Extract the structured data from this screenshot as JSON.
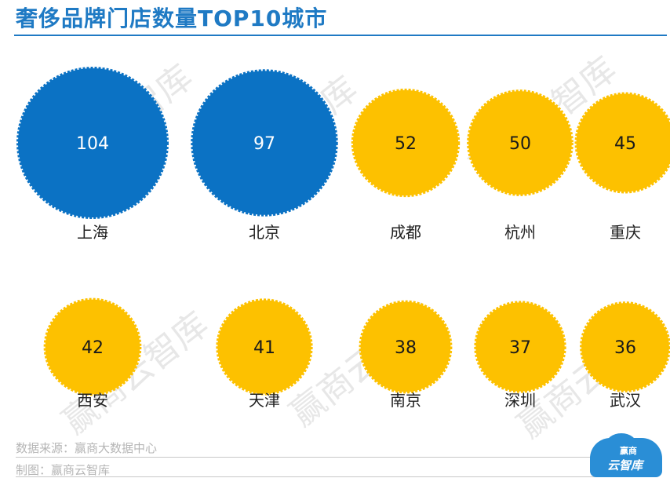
{
  "title": "奢侈品牌门店数量TOP10城市",
  "watermark": "赢商云智库",
  "footer": {
    "source": "数据来源：赢商大数据中心",
    "maker": "制图：赢商云智库"
  },
  "logo": {
    "line1": "赢商",
    "line2": "云智库"
  },
  "colors": {
    "top_series": "#0b72c4",
    "other_series": "#fdc100",
    "title": "#1f7ac4",
    "label": "#222222"
  },
  "chart_data": {
    "type": "bubble",
    "title": "奢侈品牌门店数量TOP10城市",
    "categories": [
      "上海",
      "北京",
      "成都",
      "杭州",
      "重庆",
      "西安",
      "天津",
      "南京",
      "深圳",
      "武汉"
    ],
    "values": [
      104,
      97,
      52,
      50,
      45,
      42,
      41,
      38,
      37,
      36
    ],
    "layout": "2 rows x 5 columns",
    "legend": "none",
    "grid": false
  }
}
